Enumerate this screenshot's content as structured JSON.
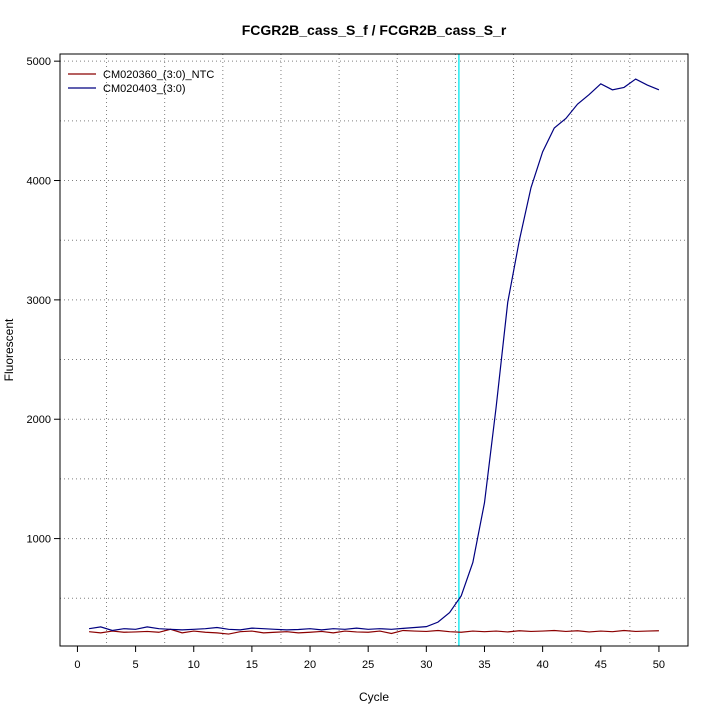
{
  "chart_data": {
    "type": "line",
    "title": "FCGR2B_cass_S_f / FCGR2B_cass_S_r",
    "xlabel": "Cycle",
    "ylabel": "Fluorescent",
    "xlim": [
      -1.5,
      52.5
    ],
    "ylim": [
      100,
      5060
    ],
    "x_ticks": [
      0,
      5,
      10,
      15,
      20,
      25,
      30,
      35,
      40,
      45,
      50
    ],
    "y_ticks": [
      1000,
      2000,
      3000,
      4000,
      5000
    ],
    "grid": true,
    "legend_position": "top-left",
    "threshold_cycle": 32.8,
    "threshold_color": "#00e5ee",
    "x": [
      1,
      2,
      3,
      4,
      5,
      6,
      7,
      8,
      9,
      10,
      11,
      12,
      13,
      14,
      15,
      16,
      17,
      18,
      19,
      20,
      21,
      22,
      23,
      24,
      25,
      26,
      27,
      28,
      29,
      30,
      31,
      32,
      33,
      34,
      35,
      36,
      37,
      38,
      39,
      40,
      41,
      42,
      43,
      44,
      45,
      46,
      47,
      48,
      49,
      50
    ],
    "series": [
      {
        "name": "CM020360_(3:0)_NTC",
        "color": "#8b0000",
        "values": [
          220,
          210,
          225,
          215,
          218,
          222,
          215,
          240,
          210,
          225,
          215,
          210,
          200,
          220,
          225,
          210,
          215,
          220,
          210,
          215,
          222,
          210,
          225,
          218,
          215,
          225,
          205,
          230,
          225,
          222,
          230,
          220,
          215,
          225,
          220,
          225,
          218,
          228,
          222,
          225,
          230,
          222,
          228,
          218,
          225,
          220,
          230,
          222,
          225,
          228
        ]
      },
      {
        "name": "CM020403_(3:0)",
        "color": "#000080",
        "values": [
          245,
          260,
          230,
          245,
          240,
          260,
          245,
          240,
          235,
          240,
          245,
          255,
          240,
          235,
          250,
          245,
          240,
          235,
          238,
          245,
          235,
          245,
          240,
          250,
          240,
          245,
          240,
          248,
          255,
          262,
          300,
          380,
          520,
          800,
          1300,
          2100,
          2980,
          3500,
          3940,
          4240,
          4440,
          4520,
          4640,
          4720,
          4810,
          4760,
          4780,
          4850,
          4800,
          4760
        ]
      }
    ]
  }
}
